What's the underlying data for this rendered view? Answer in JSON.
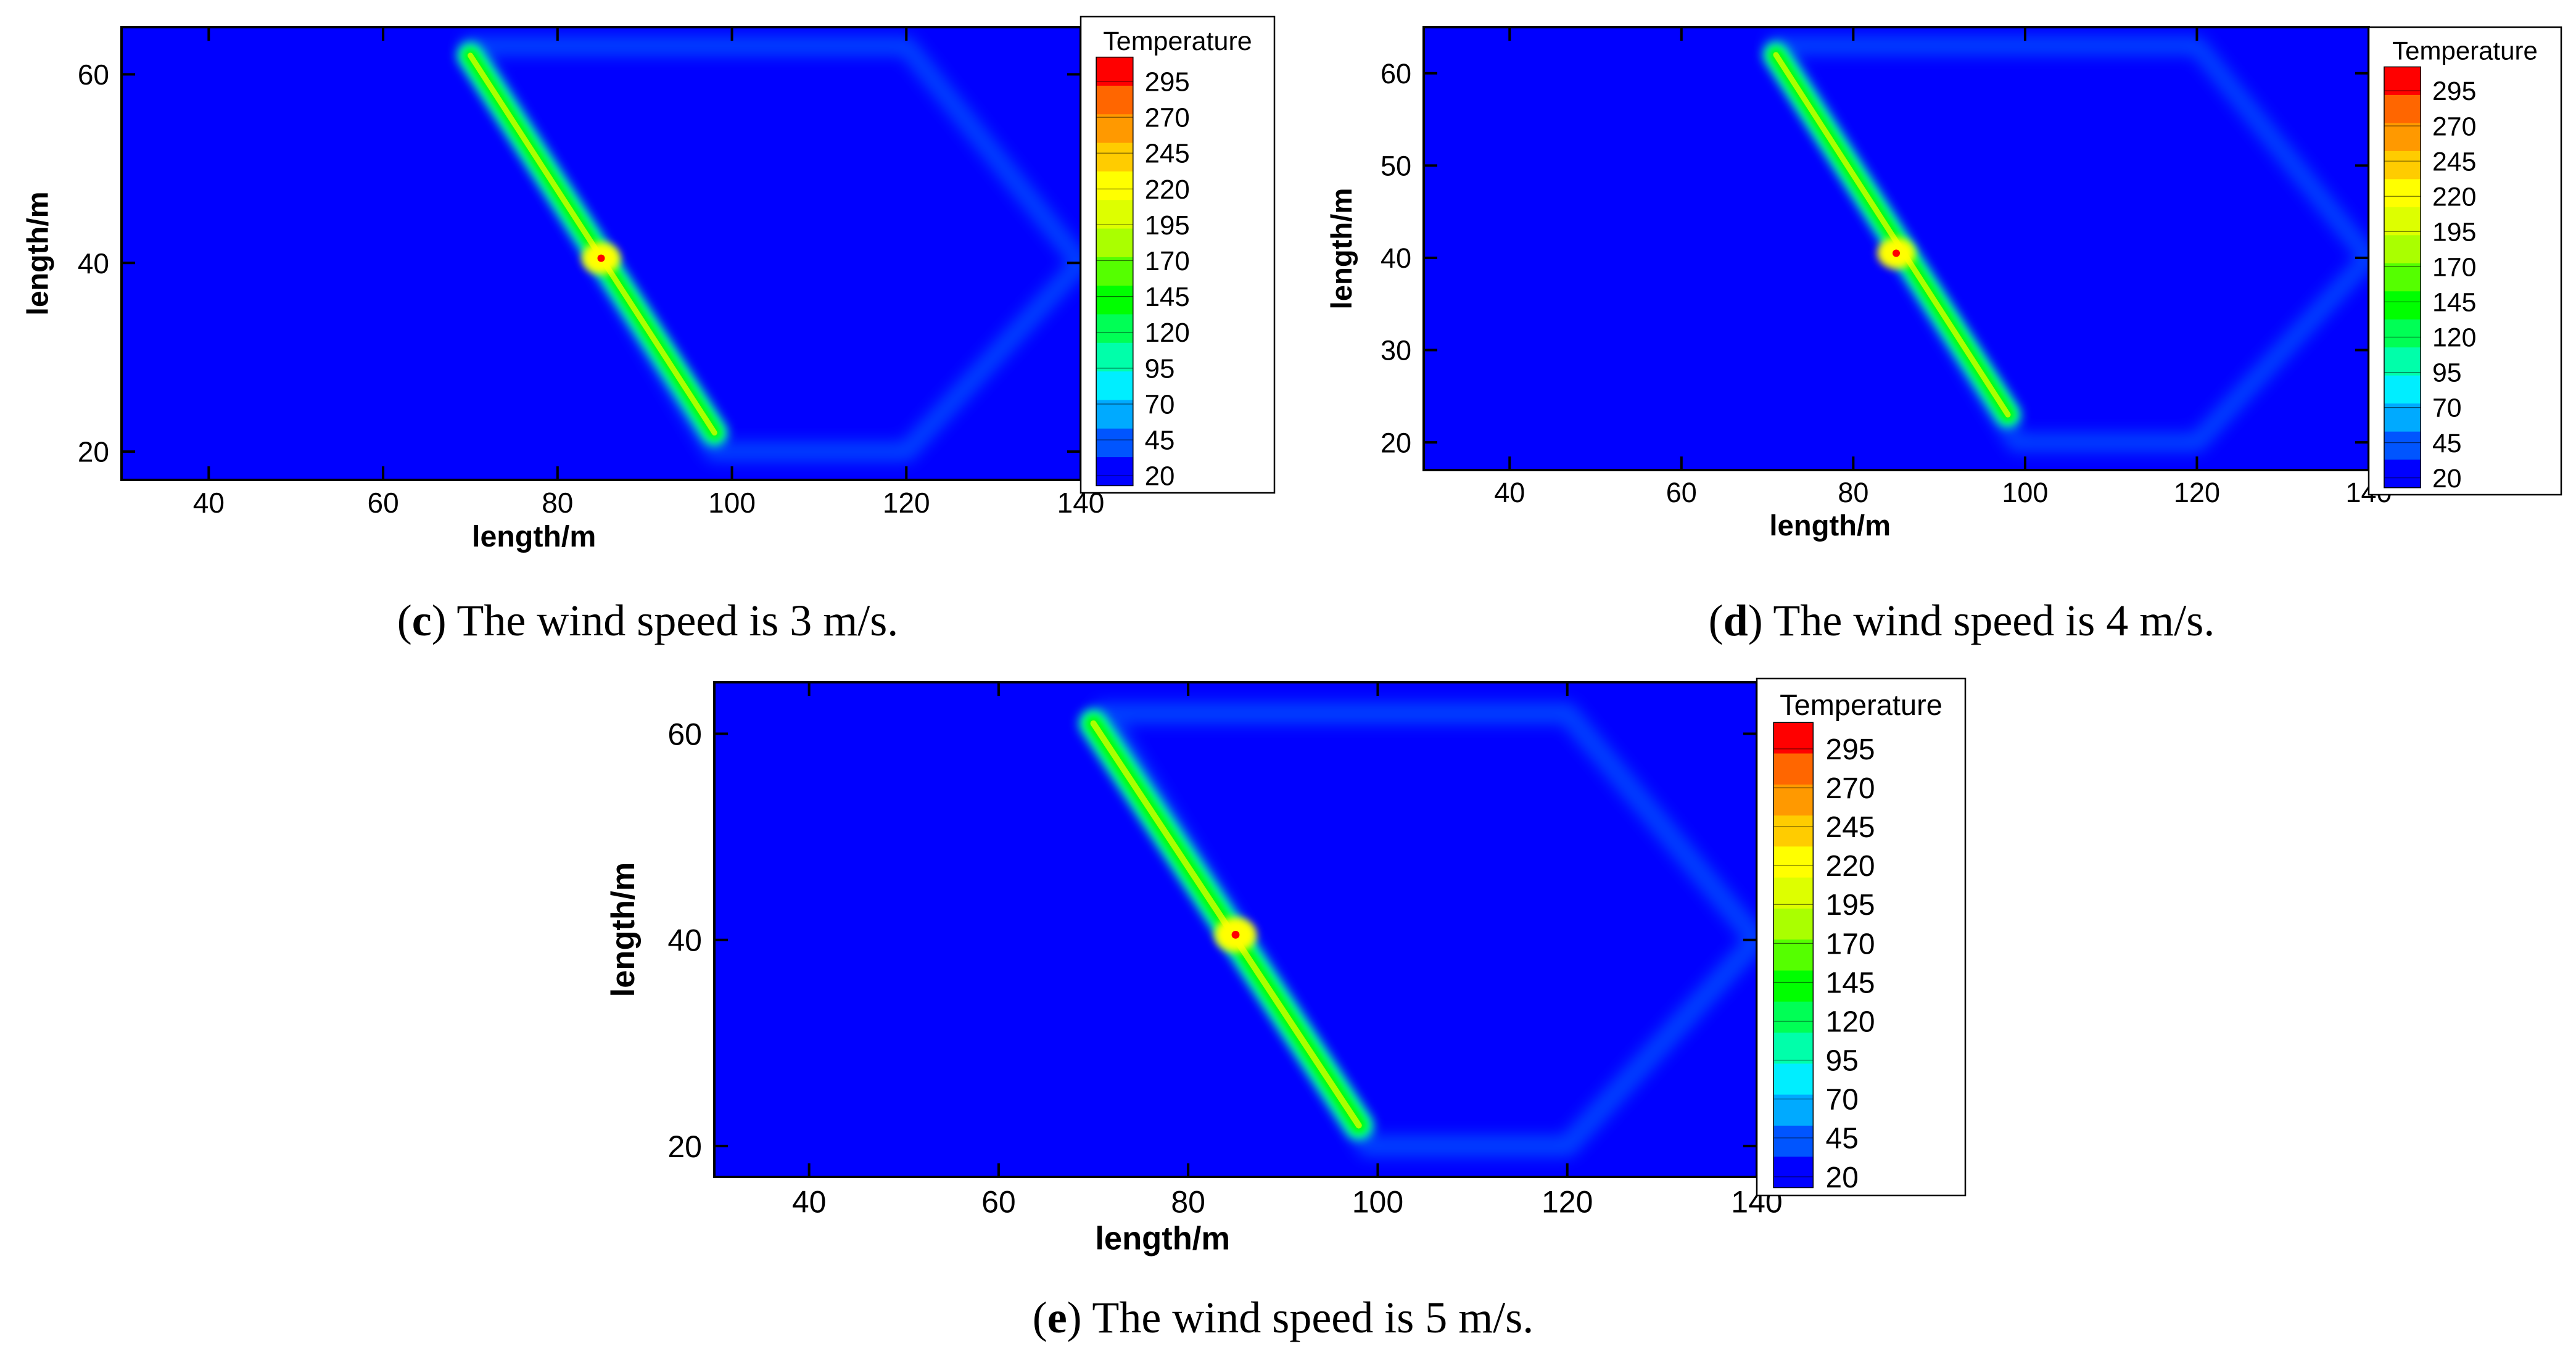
{
  "colormap": [
    "#0000ff",
    "#0055ff",
    "#00aaff",
    "#00eeff",
    "#00ffaa",
    "#00ff55",
    "#00ff00",
    "#55ff00",
    "#aaff00",
    "#ddff00",
    "#ffff00",
    "#ffcc00",
    "#ff9900",
    "#ff6600",
    "#ff0000"
  ],
  "chart_data": [
    {
      "id": "c",
      "type": "heatmap",
      "caption": {
        "letter": "c",
        "text": "The wind speed is 3 m/s."
      },
      "xlabel": "length/m",
      "ylabel": "length/m",
      "xlim": [
        30,
        140
      ],
      "ylim": [
        17,
        65
      ],
      "xticks": [
        "40",
        "60",
        "80",
        "100",
        "120",
        "140"
      ],
      "yticks": [
        "20",
        "40",
        "60"
      ],
      "legend": {
        "title": "Temperature",
        "levels": [
          "295",
          "270",
          "245",
          "220",
          "195",
          "170",
          "145",
          "120",
          "95",
          "70",
          "45",
          "20"
        ]
      },
      "background_temperature": 20,
      "outline": {
        "points": [
          [
            70,
            63
          ],
          [
            120,
            63
          ],
          [
            140,
            40
          ],
          [
            120,
            20
          ],
          [
            98,
            20
          ],
          [
            70,
            63
          ]
        ],
        "temperature": 45
      },
      "fire_line": {
        "from": [
          70,
          62
        ],
        "to": [
          98,
          22
        ],
        "temperature": 160
      },
      "hotspot": {
        "x": 85,
        "y": 40.5,
        "temperature": 295
      }
    },
    {
      "id": "d",
      "type": "heatmap",
      "caption": {
        "letter": "d",
        "text": "The wind speed is 4 m/s."
      },
      "xlabel": "length/m",
      "ylabel": "length/m",
      "xlim": [
        30,
        140
      ],
      "ylim": [
        17,
        65
      ],
      "xticks": [
        "40",
        "60",
        "80",
        "100",
        "120",
        "140"
      ],
      "yticks": [
        "20",
        "30",
        "40",
        "50",
        "60"
      ],
      "legend": {
        "title": "Temperature",
        "levels": [
          "295",
          "270",
          "245",
          "220",
          "195",
          "170",
          "145",
          "120",
          "95",
          "70",
          "45",
          "20"
        ]
      },
      "background_temperature": 20,
      "outline": {
        "points": [
          [
            71,
            63
          ],
          [
            120,
            63
          ],
          [
            140,
            40
          ],
          [
            120,
            20
          ],
          [
            99,
            20
          ],
          [
            71,
            63
          ]
        ],
        "temperature": 45
      },
      "fire_line": {
        "from": [
          71,
          62
        ],
        "to": [
          98,
          23
        ],
        "temperature": 160
      },
      "hotspot": {
        "x": 85,
        "y": 40.5,
        "temperature": 295
      }
    },
    {
      "id": "e",
      "type": "heatmap",
      "caption": {
        "letter": "e",
        "text": "The wind speed is 5 m/s."
      },
      "xlabel": "length/m",
      "ylabel": "length/m",
      "xlim": [
        30,
        140
      ],
      "ylim": [
        17,
        65
      ],
      "xticks": [
        "40",
        "60",
        "80",
        "100",
        "120",
        "140"
      ],
      "yticks": [
        "20",
        "40",
        "60"
      ],
      "legend": {
        "title": "Temperature",
        "levels": [
          "295",
          "270",
          "245",
          "220",
          "195",
          "170",
          "145",
          "120",
          "95",
          "70",
          "45",
          "20"
        ]
      },
      "background_temperature": 20,
      "outline": {
        "points": [
          [
            71,
            62
          ],
          [
            120,
            62
          ],
          [
            140,
            40
          ],
          [
            120,
            20
          ],
          [
            99,
            20
          ],
          [
            71,
            62
          ]
        ],
        "temperature": 45
      },
      "fire_line": {
        "from": [
          70,
          61
        ],
        "to": [
          98,
          22
        ],
        "temperature": 160
      },
      "hotspot": {
        "x": 85,
        "y": 40.5,
        "temperature": 295
      }
    }
  ]
}
